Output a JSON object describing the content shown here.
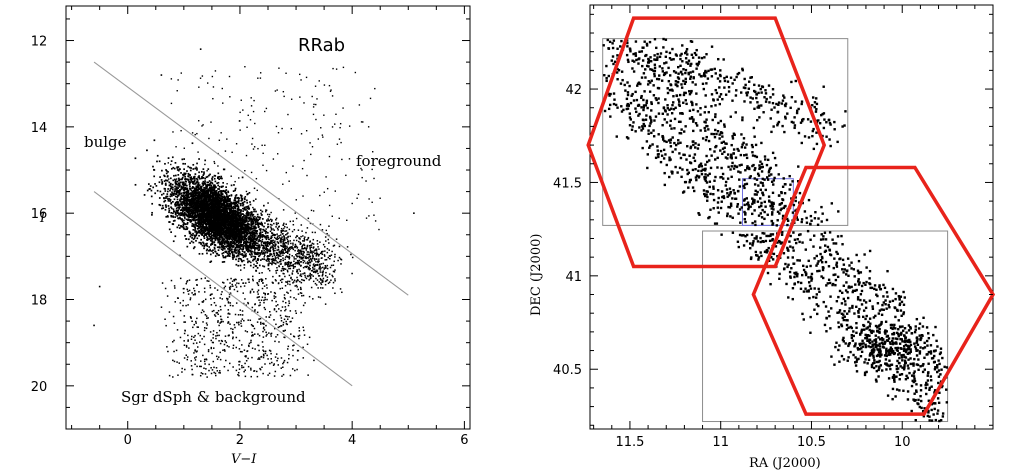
{
  "chart_data": [
    {
      "type": "scatter",
      "title": "",
      "xlabel": "V−I",
      "ylabel": "I",
      "xlim": [
        -1.1,
        6.1
      ],
      "ylim": [
        21.0,
        11.2
      ],
      "y_inverted": true,
      "x_ticks": [
        0,
        2,
        4,
        6
      ],
      "y_ticks": [
        12,
        14,
        16,
        18,
        20
      ],
      "annotations": [
        {
          "text": "RRab"
        },
        {
          "text": "bulge"
        },
        {
          "text": "foreground"
        },
        {
          "text": "Sgr dSph & background"
        }
      ],
      "boundary_lines": [
        {
          "points": [
            [
              -0.6,
              12.5
            ],
            [
              5.0,
              17.9
            ]
          ]
        },
        {
          "points": [
            [
              -0.6,
              15.5
            ],
            [
              4.0,
              20.0
            ]
          ]
        }
      ],
      "point_density": {
        "core_center": [
          1.6,
          16.1
        ],
        "approx_points": 6000
      },
      "grid": false
    },
    {
      "type": "scatter",
      "title": "",
      "xlabel": "RA (J2000)",
      "ylabel": "DEC (J2000)",
      "xlim": [
        11.72,
        9.5
      ],
      "ylim": [
        40.18,
        42.45
      ],
      "x_inverted": true,
      "x_ticks": [
        11.5,
        11,
        10.5,
        10
      ],
      "x_ticklabels": [
        "11.5",
        "11",
        "10.5",
        "10"
      ],
      "y_ticks": [
        40.5,
        41,
        41.5,
        42
      ],
      "y_ticklabels": [
        "40.5",
        "41",
        "41.5",
        "42"
      ],
      "gray_boxes": [
        {
          "ra": [
            11.65,
            10.3
          ],
          "dec": [
            41.27,
            42.27
          ]
        },
        {
          "ra": [
            11.1,
            9.75
          ],
          "dec": [
            40.22,
            41.24
          ]
        }
      ],
      "blue_box": {
        "ra": [
          10.88,
          10.6
        ],
        "dec": [
          41.27,
          41.52
        ]
      },
      "hexagons_color": "#e8231b",
      "hexagons": [
        {
          "center": [
            11.13,
            41.75
          ],
          "vertices": [
            [
              11.73,
              41.7
            ],
            [
              11.48,
              42.38
            ],
            [
              10.7,
              42.38
            ],
            [
              10.43,
              41.7
            ],
            [
              10.7,
              41.05
            ],
            [
              11.48,
              41.05
            ]
          ]
        },
        {
          "center": [
            10.2,
            40.9
          ],
          "vertices": [
            [
              10.82,
              40.9
            ],
            [
              10.53,
              41.58
            ],
            [
              9.93,
              41.58
            ],
            [
              9.5,
              40.9
            ],
            [
              9.88,
              40.26
            ],
            [
              10.53,
              40.26
            ]
          ]
        }
      ],
      "point_density": {
        "approx_points": 1500
      },
      "grid": false
    }
  ]
}
